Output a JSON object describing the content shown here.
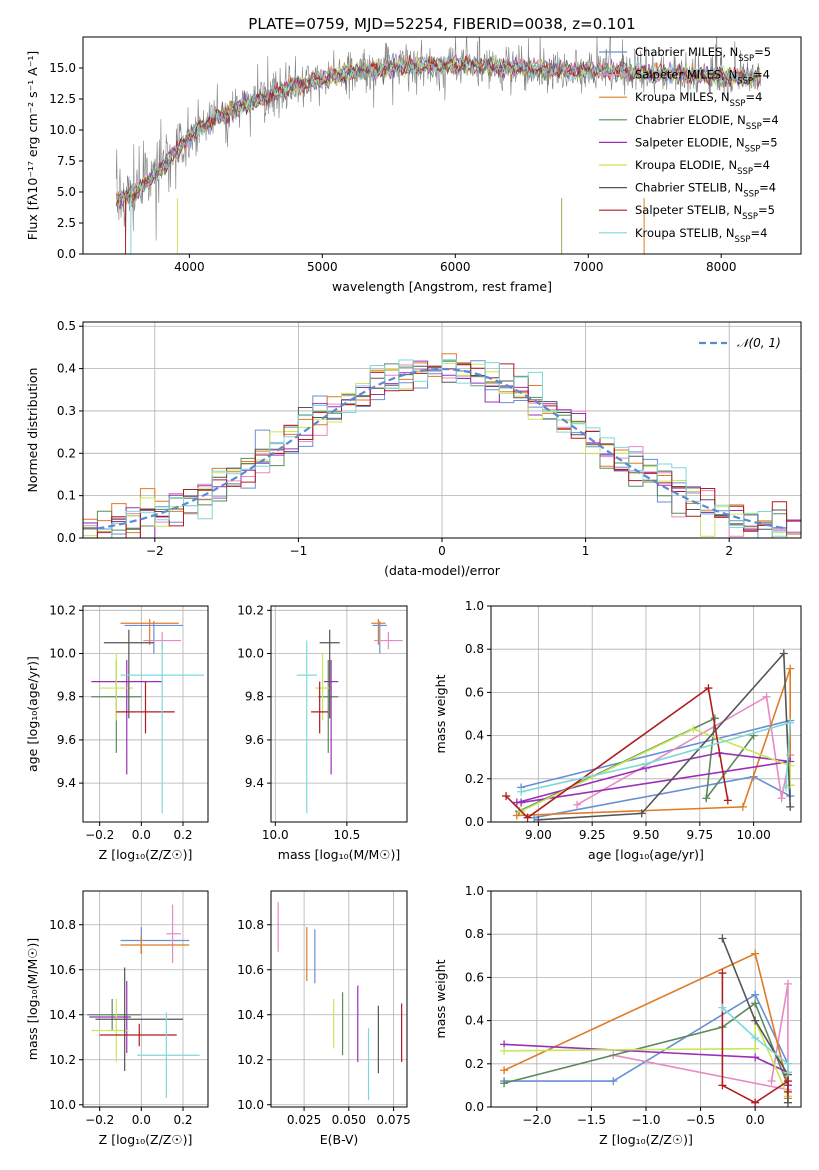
{
  "figure": {
    "title": "PLATE=0759, MJD=52254, FIBERID=0038, z=0.101"
  },
  "series_styles": [
    {
      "name": "Chabrier MILES",
      "n": 5,
      "color": "#6a8fd6"
    },
    {
      "name": "Salpeter MILES",
      "n": 4,
      "color": "#e78ac3"
    },
    {
      "name": "Kroupa MILES",
      "n": 4,
      "color": "#e07b24"
    },
    {
      "name": "Chabrier ELODIE",
      "n": 4,
      "color": "#5b8a5b"
    },
    {
      "name": "Salpeter ELODIE",
      "n": 5,
      "color": "#9b30b8"
    },
    {
      "name": "Kroupa ELODIE",
      "n": 4,
      "color": "#c8e85a"
    },
    {
      "name": "Chabrier STELIB",
      "n": 4,
      "color": "#555555"
    },
    {
      "name": "Salpeter STELIB",
      "n": 5,
      "color": "#b01c20"
    },
    {
      "name": "Kroupa STELIB",
      "n": 4,
      "color": "#7fd8d8"
    }
  ],
  "chart_data": [
    {
      "id": "spectrum",
      "type": "line",
      "xlabel": "wavelength [Angstrom, rest frame]",
      "ylabel": "Flux [fλ10⁻¹⁷ erg cm⁻² s⁻¹ A⁻¹]",
      "xlim": [
        3200,
        8600
      ],
      "ylim": [
        0,
        17.5
      ],
      "xticks": [
        4000,
        5000,
        6000,
        7000,
        8000
      ],
      "yticks": [
        0.0,
        2.5,
        5.0,
        7.5,
        10.0,
        12.5,
        15.0
      ],
      "grid": false,
      "legend_position": "right",
      "legend_entries": [
        "Chabrier MILES, N_SSP=5",
        "Salpeter MILES, N_SSP=4",
        "Kroupa MILES, N_SSP=4",
        "Chabrier ELODIE, N_SSP=4",
        "Salpeter ELODIE, N_SSP=5",
        "Kroupa ELODIE, N_SSP=4",
        "Chabrier STELIB, N_SSP=4",
        "Salpeter STELIB, N_SSP=5",
        "Kroupa STELIB, N_SSP=4"
      ],
      "data_range_x": [
        3450,
        8300
      ],
      "continuum": {
        "x": [
          3450,
          3600,
          3800,
          4000,
          4200,
          4500,
          4800,
          5000,
          5200,
          5500,
          5800,
          6000,
          6300,
          6600,
          7000,
          7400,
          7800,
          8100,
          8300
        ],
        "y": [
          4.3,
          5.0,
          7.0,
          9.5,
          11.0,
          12.4,
          13.6,
          14.1,
          14.6,
          15.0,
          15.2,
          15.3,
          15.1,
          14.9,
          14.8,
          14.6,
          14.4,
          14.3,
          14.2
        ]
      },
      "observed": {
        "color": "#808080"
      },
      "annotations": []
    },
    {
      "id": "residuals",
      "type": "line",
      "xlabel": "(data-model)/error",
      "ylabel": "Normed distribution",
      "xlim": [
        -2.5,
        2.5
      ],
      "ylim": [
        0,
        0.51
      ],
      "xticks": [
        -2,
        -1,
        0,
        1,
        2
      ],
      "yticks": [
        0.0,
        0.1,
        0.2,
        0.3,
        0.4,
        0.5
      ],
      "grid": true,
      "legend_position": "top-right",
      "legend_entries": [
        "𝒩(0, 1)"
      ],
      "reference_curve": {
        "name": "𝒩(0, 1)",
        "mu": 0,
        "sigma": 1,
        "color": "#5a8ad1"
      },
      "bin_width": 0.1
    },
    {
      "id": "age-vs-Z",
      "type": "scatter",
      "xlabel": "Z [log₁₀(Z/Z☉)]",
      "ylabel": "age  [log₁₀(age/yr)]",
      "xlim": [
        -0.28,
        0.32
      ],
      "ylim": [
        9.22,
        10.22
      ],
      "xticks": [
        -0.2,
        0.0,
        0.2
      ],
      "yticks": [
        9.4,
        9.6,
        9.8,
        10.0,
        10.2
      ],
      "grid": true,
      "points": [
        {
          "series": "Chabrier MILES",
          "x": 0.06,
          "y": 10.13,
          "xerr": 0.14,
          "yerr": [
            0.13,
            0.02
          ]
        },
        {
          "series": "Salpeter MILES",
          "x": 0.1,
          "y": 10.06,
          "xerr": 0.09,
          "yerr": [
            0.04,
            0.04
          ]
        },
        {
          "series": "Kroupa MILES",
          "x": 0.04,
          "y": 10.14,
          "xerr": 0.14,
          "yerr": [
            0.1,
            0.02
          ]
        },
        {
          "series": "Chabrier ELODIE",
          "x": -0.12,
          "y": 9.8,
          "xerr": 0.12,
          "yerr": [
            0.26,
            0.17
          ]
        },
        {
          "series": "Salpeter ELODIE",
          "x": -0.07,
          "y": 9.87,
          "xerr": 0.17,
          "yerr": [
            0.43,
            0.1
          ]
        },
        {
          "series": "Kroupa ELODIE",
          "x": -0.12,
          "y": 9.84,
          "xerr": 0.08,
          "yerr": [
            0.15,
            0.16
          ]
        },
        {
          "series": "Chabrier STELIB",
          "x": -0.06,
          "y": 10.05,
          "xerr": 0.12,
          "yerr": [
            0.35,
            0.06
          ]
        },
        {
          "series": "Salpeter STELIB",
          "x": 0.02,
          "y": 9.73,
          "xerr": 0.14,
          "yerr": [
            0.1,
            0.14
          ]
        },
        {
          "series": "Kroupa STELIB",
          "x": 0.1,
          "y": 9.9,
          "xerr": 0.2,
          "yerr": [
            0.64,
            0.16
          ]
        }
      ]
    },
    {
      "id": "age-vs-mass",
      "type": "scatter",
      "xlabel": "mass [log₁₀(M/M☉)]",
      "ylabel": "",
      "xlim": [
        9.97,
        10.92
      ],
      "ylim": [
        9.22,
        10.22
      ],
      "xticks": [
        10.0,
        10.5
      ],
      "yticks": [
        9.4,
        9.6,
        9.8,
        10.0,
        10.2
      ],
      "grid": true,
      "points": [
        {
          "series": "Chabrier MILES",
          "x": 10.73,
          "y": 10.13,
          "xerr": 0.05,
          "yerr": [
            0.13,
            0.02
          ]
        },
        {
          "series": "Salpeter MILES",
          "x": 10.79,
          "y": 10.06,
          "xerr": 0.1,
          "yerr": [
            0.04,
            0.04
          ]
        },
        {
          "series": "Kroupa MILES",
          "x": 10.72,
          "y": 10.14,
          "xerr": 0.05,
          "yerr": [
            0.1,
            0.02
          ]
        },
        {
          "series": "Chabrier ELODIE",
          "x": 10.37,
          "y": 9.8,
          "xerr": 0.07,
          "yerr": [
            0.26,
            0.17
          ]
        },
        {
          "series": "Salpeter ELODIE",
          "x": 10.39,
          "y": 9.87,
          "xerr": 0.05,
          "yerr": [
            0.43,
            0.1
          ]
        },
        {
          "series": "Kroupa ELODIE",
          "x": 10.33,
          "y": 9.84,
          "xerr": 0.05,
          "yerr": [
            0.15,
            0.16
          ]
        },
        {
          "series": "Chabrier STELIB",
          "x": 10.38,
          "y": 10.05,
          "xerr": 0.07,
          "yerr": [
            0.35,
            0.06
          ]
        },
        {
          "series": "Salpeter STELIB",
          "x": 10.31,
          "y": 9.73,
          "xerr": 0.06,
          "yerr": [
            0.1,
            0.14
          ]
        },
        {
          "series": "Kroupa STELIB",
          "x": 10.22,
          "y": 9.9,
          "xerr": 0.07,
          "yerr": [
            0.64,
            0.16
          ]
        }
      ]
    },
    {
      "id": "mass-weight-vs-age",
      "type": "line",
      "xlabel": "age  [log₁₀(age/yr)]",
      "ylabel": "mass weight",
      "xlim": [
        8.78,
        10.22
      ],
      "ylim": [
        0,
        1.0
      ],
      "xticks": [
        9.0,
        9.25,
        9.5,
        9.75,
        10.0
      ],
      "yticks": [
        0.0,
        0.2,
        0.4,
        0.6,
        0.8,
        1.0
      ],
      "grid": true,
      "series": [
        {
          "name": "Chabrier MILES",
          "x": [
            8.98,
            10.0,
            10.17,
            10.17,
            8.92
          ],
          "y": [
            0.02,
            0.21,
            0.12,
            0.47,
            0.16
          ]
        },
        {
          "name": "Salpeter MILES",
          "x": [
            9.18,
            10.06,
            10.13,
            10.17
          ],
          "y": [
            0.08,
            0.58,
            0.11,
            0.31
          ]
        },
        {
          "name": "Kroupa MILES",
          "x": [
            8.9,
            9.95,
            10.17,
            10.17
          ],
          "y": [
            0.03,
            0.07,
            0.71,
            0.17
          ]
        },
        {
          "name": "Chabrier ELODIE",
          "x": [
            8.91,
            9.82,
            9.78,
            10.0
          ],
          "y": [
            0.05,
            0.48,
            0.11,
            0.4
          ]
        },
        {
          "name": "Salpeter ELODIE",
          "x": [
            8.9,
            9.5,
            9.84,
            10.17,
            8.92
          ],
          "y": [
            0.09,
            0.25,
            0.32,
            0.28,
            0.09
          ]
        },
        {
          "name": "Kroupa ELODIE",
          "x": [
            8.92,
            9.72,
            10.17,
            10.17
          ],
          "y": [
            0.05,
            0.43,
            0.26,
            0.17
          ]
        },
        {
          "name": "Chabrier STELIB",
          "x": [
            9.0,
            9.48,
            10.14,
            10.17
          ],
          "y": [
            0.01,
            0.04,
            0.78,
            0.07
          ]
        },
        {
          "name": "Salpeter STELIB",
          "x": [
            8.85,
            8.95,
            9.79,
            9.88
          ],
          "y": [
            0.12,
            0.02,
            0.62,
            0.1
          ]
        },
        {
          "name": "Kroupa STELIB",
          "x": [
            8.92,
            9.5,
            10.17,
            10.15
          ],
          "y": [
            0.14,
            0.27,
            0.46,
            0.16
          ]
        }
      ]
    },
    {
      "id": "mass-vs-Z",
      "type": "scatter",
      "xlabel": "Z [log₁₀(Z/Z☉)]",
      "ylabel": "mass [log₁₀(M/M☉)]",
      "xlim": [
        -0.28,
        0.32
      ],
      "ylim": [
        9.99,
        10.95
      ],
      "xticks": [
        -0.2,
        0.0,
        0.2
      ],
      "yticks": [
        10.0,
        10.2,
        10.4,
        10.6,
        10.8
      ],
      "grid": true,
      "points": [
        {
          "series": "Chabrier MILES",
          "x": 0.0,
          "y": 10.73,
          "xerr": [
            0.1,
            0.23
          ],
          "yerr": 0.06
        },
        {
          "series": "Salpeter MILES",
          "x": 0.15,
          "y": 10.76,
          "xerr": [
            0.03,
            0.04
          ],
          "yerr": 0.13
        },
        {
          "series": "Kroupa MILES",
          "x": 0.0,
          "y": 10.71,
          "xerr": [
            0.1,
            0.23
          ],
          "yerr": 0.04
        },
        {
          "series": "Chabrier ELODIE",
          "x": -0.14,
          "y": 10.4,
          "xerr": [
            0.12,
            0.14
          ],
          "yerr": 0.07
        },
        {
          "series": "Salpeter ELODIE",
          "x": -0.07,
          "y": 10.39,
          "xerr": [
            0.18,
            0.02
          ],
          "yerr": 0.16
        },
        {
          "series": "Kroupa ELODIE",
          "x": -0.12,
          "y": 10.33,
          "xerr": [
            0.12,
            0.06
          ],
          "yerr": 0.14
        },
        {
          "series": "Chabrier STELIB",
          "x": -0.08,
          "y": 10.38,
          "xerr": [
            0.14,
            0.28
          ],
          "yerr": 0.23
        },
        {
          "series": "Salpeter STELIB",
          "x": -0.01,
          "y": 10.31,
          "xerr": [
            0.19,
            0.18
          ],
          "yerr": 0.05
        },
        {
          "series": "Kroupa STELIB",
          "x": 0.12,
          "y": 10.22,
          "xerr": [
            0.14,
            0.16
          ],
          "yerr": 0.19
        }
      ]
    },
    {
      "id": "mass-vs-ebv",
      "type": "scatter",
      "xlabel": "E(B-V)",
      "ylabel": "",
      "xlim": [
        0.0065,
        0.0825
      ],
      "ylim": [
        9.99,
        10.95
      ],
      "xticks": [
        0.025,
        0.05,
        0.075
      ],
      "yticks": [
        10.0,
        10.2,
        10.4,
        10.6,
        10.8
      ],
      "grid": true,
      "points": [
        {
          "series": "Chabrier MILES",
          "x": 0.031,
          "y": 10.66,
          "yerr": 0.12
        },
        {
          "series": "Salpeter MILES",
          "x": 0.0105,
          "y": 10.79,
          "yerr": 0.11
        },
        {
          "series": "Kroupa MILES",
          "x": 0.0265,
          "y": 10.67,
          "yerr": 0.12
        },
        {
          "series": "Chabrier ELODIE",
          "x": 0.0465,
          "y": 10.36,
          "yerr": 0.14
        },
        {
          "series": "Salpeter ELODIE",
          "x": 0.055,
          "y": 10.36,
          "yerr": 0.17
        },
        {
          "series": "Kroupa ELODIE",
          "x": 0.0415,
          "y": 10.36,
          "yerr": 0.11
        },
        {
          "series": "Chabrier STELIB",
          "x": 0.0665,
          "y": 10.29,
          "yerr": 0.15
        },
        {
          "series": "Salpeter STELIB",
          "x": 0.0795,
          "y": 10.32,
          "yerr": 0.13
        },
        {
          "series": "Kroupa STELIB",
          "x": 0.061,
          "y": 10.18,
          "yerr": 0.16
        }
      ]
    },
    {
      "id": "mass-weight-vs-Z",
      "type": "line",
      "xlabel": "Z [log₁₀(Z/Z☉)]",
      "ylabel": "mass weight",
      "xlim": [
        -2.42,
        0.42
      ],
      "ylim": [
        0,
        1.0
      ],
      "xticks": [
        -2.0,
        -1.5,
        -1.0,
        -0.5,
        0.0
      ],
      "yticks": [
        0.0,
        0.2,
        0.4,
        0.6,
        0.8,
        1.0
      ],
      "grid": true,
      "series": [
        {
          "name": "Chabrier MILES",
          "x": [
            -2.3,
            -1.3,
            0.0,
            0.3,
            0.3
          ],
          "y": [
            0.12,
            0.12,
            0.52,
            0.2,
            0.05
          ]
        },
        {
          "name": "Salpeter MILES",
          "x": [
            -1.3,
            0.3,
            0.3,
            0.15
          ],
          "y": [
            0.24,
            0.08,
            0.57,
            0.12
          ]
        },
        {
          "name": "Kroupa MILES",
          "x": [
            -2.3,
            0.0,
            0.3,
            0.3
          ],
          "y": [
            0.17,
            0.71,
            0.1,
            0.04
          ]
        },
        {
          "name": "Chabrier ELODIE",
          "x": [
            -2.3,
            -0.3,
            0.0,
            0.3
          ],
          "y": [
            0.11,
            0.37,
            0.48,
            0.1
          ]
        },
        {
          "name": "Salpeter ELODIE",
          "x": [
            -2.3,
            0.0,
            0.3,
            0.3
          ],
          "y": [
            0.29,
            0.23,
            0.16,
            0.1
          ]
        },
        {
          "name": "Kroupa ELODIE",
          "x": [
            -2.3,
            0.0,
            0.0,
            0.3
          ],
          "y": [
            0.26,
            0.27,
            0.4,
            0.05
          ]
        },
        {
          "name": "Chabrier STELIB",
          "x": [
            -0.3,
            0.0,
            0.3,
            0.3
          ],
          "y": [
            0.78,
            0.4,
            0.15,
            0.02
          ]
        },
        {
          "name": "Salpeter STELIB",
          "x": [
            -0.3,
            -0.3,
            0.0,
            0.3,
            0.3
          ],
          "y": [
            0.62,
            0.1,
            0.02,
            0.12,
            0.07
          ]
        },
        {
          "name": "Kroupa STELIB",
          "x": [
            -0.3,
            0.0,
            0.3,
            0.3
          ],
          "y": [
            0.46,
            0.32,
            0.2,
            0.16
          ]
        }
      ]
    }
  ]
}
